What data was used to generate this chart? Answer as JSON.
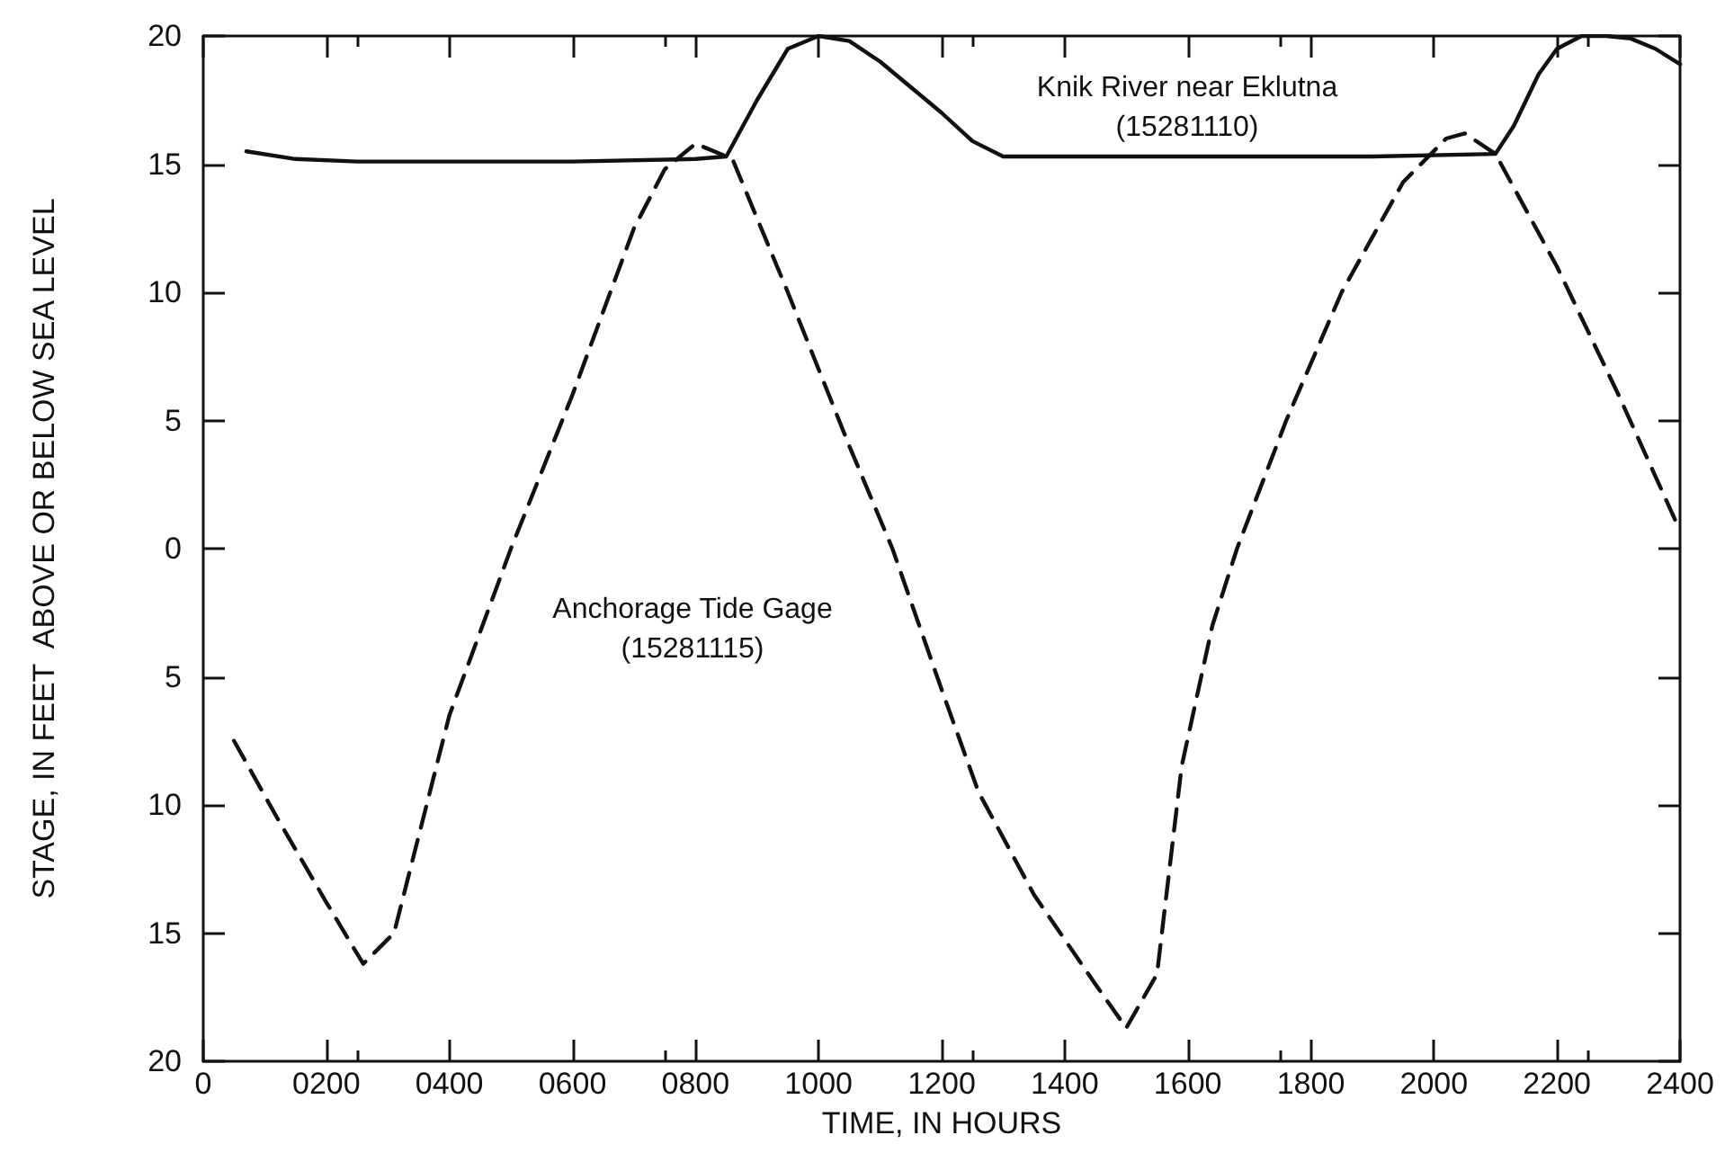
{
  "chart_data": {
    "type": "line",
    "xlabel": "TIME, IN HOURS",
    "ylabel": "STAGE, IN FEET  ABOVE OR BELOW SEA LEVEL",
    "xlim": [
      0,
      2400
    ],
    "xticks": [
      0,
      {
        "value": 200,
        "label": "0200"
      },
      {
        "value": 400,
        "label": "0400"
      },
      {
        "value": 600,
        "label": "0600"
      },
      {
        "value": 800,
        "label": "0800"
      },
      1000,
      1200,
      1400,
      1600,
      1800,
      2000,
      2200,
      2400
    ],
    "ylim": [
      -20,
      20
    ],
    "yticks": [
      20,
      15,
      10,
      5,
      0,
      {
        "value": -5,
        "label": "5"
      },
      {
        "value": -10,
        "label": "10"
      },
      {
        "value": -15,
        "label": "15"
      },
      {
        "value": -20,
        "label": "20"
      }
    ],
    "grid": false,
    "marker": "none",
    "series": [
      {
        "color": "#111111",
        "line_style": "solid",
        "x": [
          70,
          150,
          250,
          400,
          600,
          800,
          850,
          900,
          950,
          1000,
          1050,
          1100,
          1150,
          1200,
          1250,
          1300,
          1500,
          1700,
          1900,
          2100,
          2130,
          2170,
          2200,
          2240,
          2280,
          2320,
          2360,
          2400
        ],
        "values": [
          15.5,
          15.2,
          15.1,
          15.1,
          15.1,
          15.2,
          15.3,
          17.5,
          19.5,
          20,
          19.8,
          19,
          18,
          17,
          15.9,
          15.3,
          15.3,
          15.3,
          15.3,
          15.4,
          16.5,
          18.5,
          19.5,
          20,
          20,
          19.9,
          19.5,
          18.9
        ]
      },
      {
        "color": "#111111",
        "line_style": "dashed",
        "x": [
          50,
          120,
          200,
          260,
          310,
          400,
          500,
          600,
          700,
          750,
          800,
          860,
          950,
          1050,
          1120,
          1200,
          1260,
          1350,
          1450,
          1500,
          1550,
          1590,
          1640,
          1680,
          1760,
          1850,
          1950,
          2020,
          2050,
          2100,
          2200,
          2300,
          2400
        ],
        "values": [
          -7.5,
          -10.5,
          -13.8,
          -16.2,
          -15,
          -6.5,
          0,
          6,
          12.5,
          14.8,
          15.8,
          15.2,
          10,
          4,
          0,
          -5.5,
          -9.5,
          -13.5,
          -17,
          -18.7,
          -16.6,
          -8.5,
          -3,
          0,
          5,
          10,
          14.3,
          16,
          16.2,
          15.4,
          11,
          6,
          0.7
        ]
      }
    ],
    "annotations": [
      "Knik River near Eklutna\n(15281110)",
      "Anchorage Tide Gage\n(15281115)"
    ]
  }
}
